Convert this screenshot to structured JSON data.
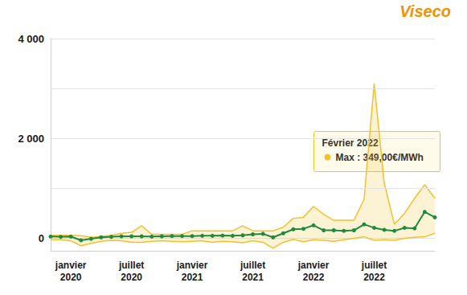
{
  "chart_data": {
    "type": "line",
    "logo": "Viseco",
    "categories": [
      null,
      null,
      "janvier\n2020",
      null,
      null,
      null,
      null,
      null,
      "juillet\n2020",
      null,
      null,
      null,
      null,
      null,
      "janvier\n2021",
      null,
      null,
      null,
      null,
      null,
      "juillet\n2021",
      null,
      null,
      null,
      null,
      null,
      "janvier\n2022",
      null,
      null,
      null,
      null,
      null,
      "juillet\n2022",
      null,
      null,
      null,
      null,
      null,
      null
    ],
    "series": [
      {
        "type": "area",
        "color": "#f2c12e",
        "marker": "none",
        "line_style": "solid",
        "values": [
          60,
          60,
          60,
          50,
          20,
          40,
          60,
          100,
          120,
          250,
          80,
          80,
          80,
          80,
          150,
          150,
          150,
          150,
          150,
          250,
          150,
          150,
          150,
          220,
          400,
          420,
          640,
          480,
          360,
          360,
          360,
          780,
          3100,
          1100,
          280,
          500,
          800,
          1075,
          800
        ]
      },
      {
        "type": "area",
        "color": "#f2c12e",
        "marker": "none",
        "line_style": "solid",
        "values": [
          -30,
          -30,
          -50,
          -150,
          -100,
          -60,
          -40,
          -50,
          -80,
          -80,
          -60,
          -50,
          -60,
          -70,
          -60,
          -50,
          -80,
          -60,
          -70,
          -90,
          -50,
          -80,
          -200,
          -80,
          -20,
          -70,
          -30,
          -40,
          -60,
          -30,
          0,
          30,
          -40,
          -30,
          -40,
          0,
          20,
          30,
          100
        ]
      },
      {
        "type": "line",
        "color": "#1f8a3c",
        "marker": "circle",
        "line_style": "solid",
        "values": [
          35,
          30,
          35,
          -40,
          -10,
          20,
          30,
          40,
          40,
          40,
          35,
          40,
          45,
          45,
          45,
          50,
          50,
          55,
          50,
          60,
          80,
          90,
          20,
          100,
          180,
          190,
          260,
          160,
          160,
          150,
          160,
          280,
          210,
          170,
          150,
          210,
          200,
          530,
          420
        ]
      }
    ],
    "ylim": [
      -250,
      4000
    ],
    "yticks": [
      0,
      {
        "value": 2000,
        "label": "2 000"
      },
      {
        "value": 4000,
        "label": "4 000"
      }
    ],
    "grid": true,
    "tick_labels": true,
    "annotation": {
      "title": "Février 2022",
      "text": "Max : 349,00€/MWh"
    }
  }
}
